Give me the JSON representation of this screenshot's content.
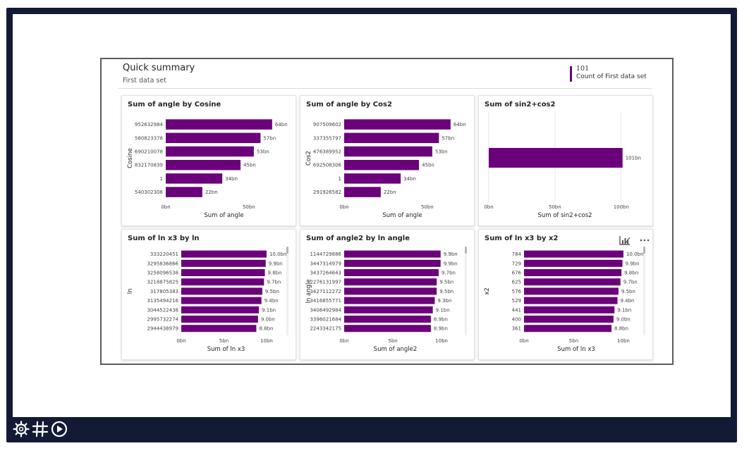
{
  "report": {
    "title": "Quick summary",
    "subtitle": "First data set",
    "kpi": {
      "value": "101",
      "label": "Count of First data set"
    }
  },
  "colors": {
    "bar": "#6b007b",
    "frame": "#121a36"
  },
  "icons": [
    "settings-gear-icon",
    "hashtag-grid-icon",
    "play-circle-icon",
    "analytics-icon",
    "more-options-icon"
  ],
  "chart_data": [
    {
      "type": "bar",
      "orientation": "horizontal",
      "title": "Sum of angle by Cosine",
      "xlabel": "Sum of angle",
      "ylabel": "Cosine",
      "categories": [
        "952632984",
        "580823378",
        "690210078",
        "832170839",
        "1",
        "540302306"
      ],
      "values": [
        64,
        57,
        53,
        45,
        34,
        22
      ],
      "data_labels": [
        "64bn",
        "57bn",
        "53bn",
        "45bn",
        "34bn",
        "22bn"
      ],
      "xticks": [
        0,
        50
      ],
      "xtick_labels": [
        "0bn",
        "50bn"
      ],
      "xlim": [
        0,
        70
      ],
      "scrollbar": false
    },
    {
      "type": "bar",
      "orientation": "horizontal",
      "title": "Sum of angle by Cos2",
      "xlabel": "Sum of angle",
      "ylabel": "Cos2",
      "categories": [
        "907509602",
        "337355797",
        "476389952",
        "692508306",
        "1",
        "291926582"
      ],
      "values": [
        64,
        57,
        53,
        45,
        34,
        22
      ],
      "data_labels": [
        "64bn",
        "57bn",
        "53bn",
        "45bn",
        "34bn",
        "22bn"
      ],
      "xticks": [
        0,
        50
      ],
      "xtick_labels": [
        "0bn",
        "50bn"
      ],
      "xlim": [
        0,
        70
      ],
      "scrollbar": false
    },
    {
      "type": "bar",
      "orientation": "horizontal",
      "title": "Sum of sin2+cos2",
      "xlabel": "Sum of sin2+cos2",
      "ylabel": "",
      "categories": [
        ""
      ],
      "values": [
        101
      ],
      "data_labels": [
        "101bn"
      ],
      "xticks": [
        0,
        50,
        100
      ],
      "xtick_labels": [
        "0bn",
        "50bn",
        "100bn"
      ],
      "xlim": [
        0,
        115
      ],
      "grid": true,
      "scrollbar": false
    },
    {
      "type": "bar",
      "orientation": "horizontal",
      "title": "Sum of ln x3 by ln",
      "xlabel": "Sum of ln x3",
      "ylabel": "ln",
      "categories": [
        "333220451",
        "3295836866",
        "3258096538",
        "3218875825",
        "317805383",
        "3135494216",
        "3044522438",
        "2995732274",
        "2944438979"
      ],
      "values": [
        10.0,
        9.9,
        9.8,
        9.7,
        9.5,
        9.4,
        9.1,
        9.0,
        8.8
      ],
      "data_labels": [
        "10.0bn",
        "9.9bn",
        "9.8bn",
        "9.7bn",
        "9.5bn",
        "9.4bn",
        "9.1bn",
        "9.0bn",
        "8.8bn"
      ],
      "xticks": [
        0,
        5,
        10
      ],
      "xtick_labels": [
        "0bn",
        "5bn",
        "10bn"
      ],
      "xlim": [
        0,
        10.5
      ],
      "scrollbar": true
    },
    {
      "type": "bar",
      "orientation": "horizontal",
      "title": "Sum of angle2 by ln angle",
      "xlabel": "Sum of angle2",
      "ylabel": "ln angle",
      "categories": [
        "1144729886",
        "3447314979",
        "3437264643",
        "2276131997",
        "3427112272",
        "3416855771",
        "3406492984",
        "3396021684",
        "2243342175"
      ],
      "values": [
        9.9,
        9.9,
        9.7,
        9.5,
        9.5,
        9.3,
        9.1,
        8.9,
        8.9
      ],
      "data_labels": [
        "9.9bn",
        "9.9bn",
        "9.7bn",
        "9.5bn",
        "9.5bn",
        "9.3bn",
        "9.1bn",
        "8.9bn",
        "8.9bn"
      ],
      "xticks": [
        0,
        5,
        10
      ],
      "xtick_labels": [
        "0bn",
        "5bn",
        "10bn"
      ],
      "xlim": [
        0,
        10.5
      ],
      "scrollbar": true
    },
    {
      "type": "bar",
      "orientation": "horizontal",
      "title": "Sum of ln x3 by x2",
      "xlabel": "Sum of ln x3",
      "ylabel": "x2",
      "categories": [
        "784",
        "729",
        "676",
        "625",
        "576",
        "529",
        "441",
        "400",
        "361"
      ],
      "values": [
        10.0,
        9.9,
        9.8,
        9.7,
        9.5,
        9.4,
        9.1,
        9.0,
        8.8
      ],
      "data_labels": [
        "10.0bn",
        "9.9bn",
        "9.8bn",
        "9.7bn",
        "9.5bn",
        "9.4bn",
        "9.1bn",
        "9.0bn",
        "8.8bn"
      ],
      "xticks": [
        0,
        5,
        10
      ],
      "xtick_labels": [
        "0bn",
        "5bn",
        "10bn"
      ],
      "xlim": [
        0,
        10.5
      ],
      "scrollbar": true
    }
  ]
}
